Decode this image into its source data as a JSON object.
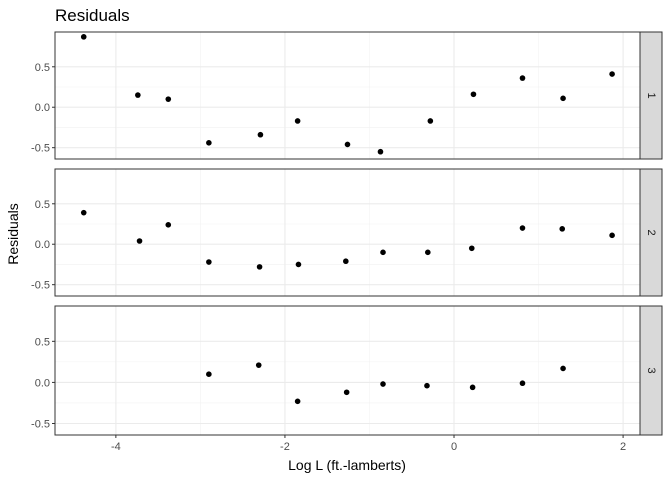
{
  "chart_data": {
    "type": "scatter",
    "title": "Residuals",
    "xlabel": "Log L (ft.-lamberts)",
    "ylabel": "Residuals",
    "xlim": [
      -4.72,
      2.2
    ],
    "ylim": [
      -0.64,
      0.93
    ],
    "x_ticks": [
      -4,
      -2,
      0,
      2
    ],
    "x_tick_labels": [
      "-4",
      "-2",
      "0",
      "2"
    ],
    "y_ticks": [
      -0.5,
      0,
      0.5
    ],
    "y_tick_labels": [
      "-0.5",
      "0.0",
      "0.5"
    ],
    "grid": true,
    "legend": "none",
    "point_color": "#000000",
    "panels": [
      {
        "label": "1",
        "points": [
          {
            "x": -4.38,
            "y": 0.87
          },
          {
            "x": -3.74,
            "y": 0.15
          },
          {
            "x": -3.38,
            "y": 0.1
          },
          {
            "x": -2.9,
            "y": -0.44
          },
          {
            "x": -2.29,
            "y": -0.34
          },
          {
            "x": -1.85,
            "y": -0.17
          },
          {
            "x": -1.26,
            "y": -0.46
          },
          {
            "x": -0.87,
            "y": -0.55
          },
          {
            "x": -0.28,
            "y": -0.17
          },
          {
            "x": 0.23,
            "y": 0.16
          },
          {
            "x": 0.81,
            "y": 0.36
          },
          {
            "x": 1.29,
            "y": 0.11
          },
          {
            "x": 1.87,
            "y": 0.41
          }
        ]
      },
      {
        "label": "2",
        "points": [
          {
            "x": -4.38,
            "y": 0.39
          },
          {
            "x": -3.72,
            "y": 0.04
          },
          {
            "x": -3.38,
            "y": 0.24
          },
          {
            "x": -2.9,
            "y": -0.22
          },
          {
            "x": -2.3,
            "y": -0.28
          },
          {
            "x": -1.84,
            "y": -0.25
          },
          {
            "x": -1.28,
            "y": -0.21
          },
          {
            "x": -0.84,
            "y": -0.1
          },
          {
            "x": -0.31,
            "y": -0.1
          },
          {
            "x": 0.21,
            "y": -0.05
          },
          {
            "x": 0.81,
            "y": 0.2
          },
          {
            "x": 1.28,
            "y": 0.19
          },
          {
            "x": 1.87,
            "y": 0.11
          }
        ]
      },
      {
        "label": "3",
        "points": [
          {
            "x": -2.9,
            "y": 0.1
          },
          {
            "x": -2.31,
            "y": 0.21
          },
          {
            "x": -1.85,
            "y": -0.23
          },
          {
            "x": -1.27,
            "y": -0.12
          },
          {
            "x": -0.84,
            "y": -0.02
          },
          {
            "x": -0.32,
            "y": -0.04
          },
          {
            "x": 0.22,
            "y": -0.06
          },
          {
            "x": 0.81,
            "y": -0.01
          },
          {
            "x": 1.29,
            "y": 0.17
          }
        ]
      }
    ]
  }
}
